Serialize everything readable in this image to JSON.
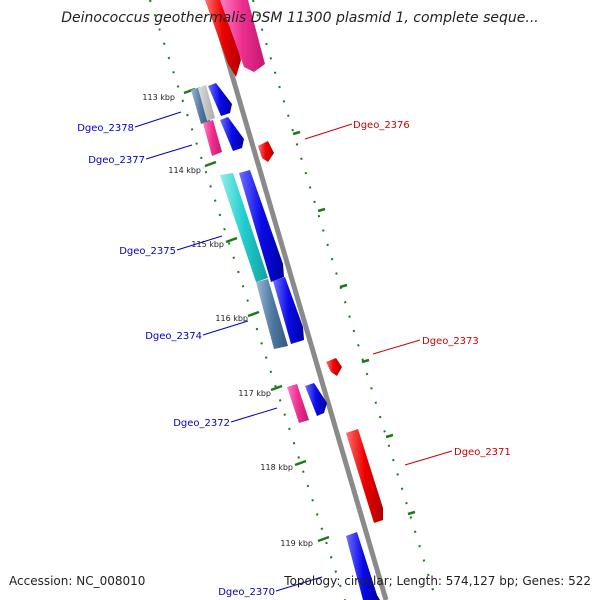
{
  "title": "Deinococcus geothermalis DSM 11300 plasmid 1, complete seque...",
  "accession": "Accession: NC_008010",
  "summary": "Topology: circular; Length: 574,127 bp; Genes: 522",
  "colors": {
    "backbone": "#8c8c8c",
    "tick": "#1a7a1a",
    "plus_strand_label": "#cc0000",
    "minus_strand_label": "#0000cc",
    "red": "#ee0000",
    "pink": "#ee2d8f",
    "blue": "#0a0ae8",
    "cyan": "#22cccc",
    "steel": "#4f7aa3"
  },
  "ticks": [
    "113 kbp",
    "114 kbp",
    "115 kbp",
    "116 kbp",
    "117 kbp",
    "118 kbp",
    "119 kbp"
  ],
  "genes": [
    {
      "name": "Dgeo_2376",
      "side": "right"
    },
    {
      "name": "Dgeo_2373",
      "side": "right"
    },
    {
      "name": "Dgeo_2371",
      "side": "right"
    },
    {
      "name": "Dgeo_2378",
      "side": "left"
    },
    {
      "name": "Dgeo_2377",
      "side": "left"
    },
    {
      "name": "Dgeo_2375",
      "side": "left"
    },
    {
      "name": "Dgeo_2374",
      "side": "left"
    },
    {
      "name": "Dgeo_2372",
      "side": "left"
    },
    {
      "name": "Dgeo_2370",
      "side": "left"
    }
  ]
}
